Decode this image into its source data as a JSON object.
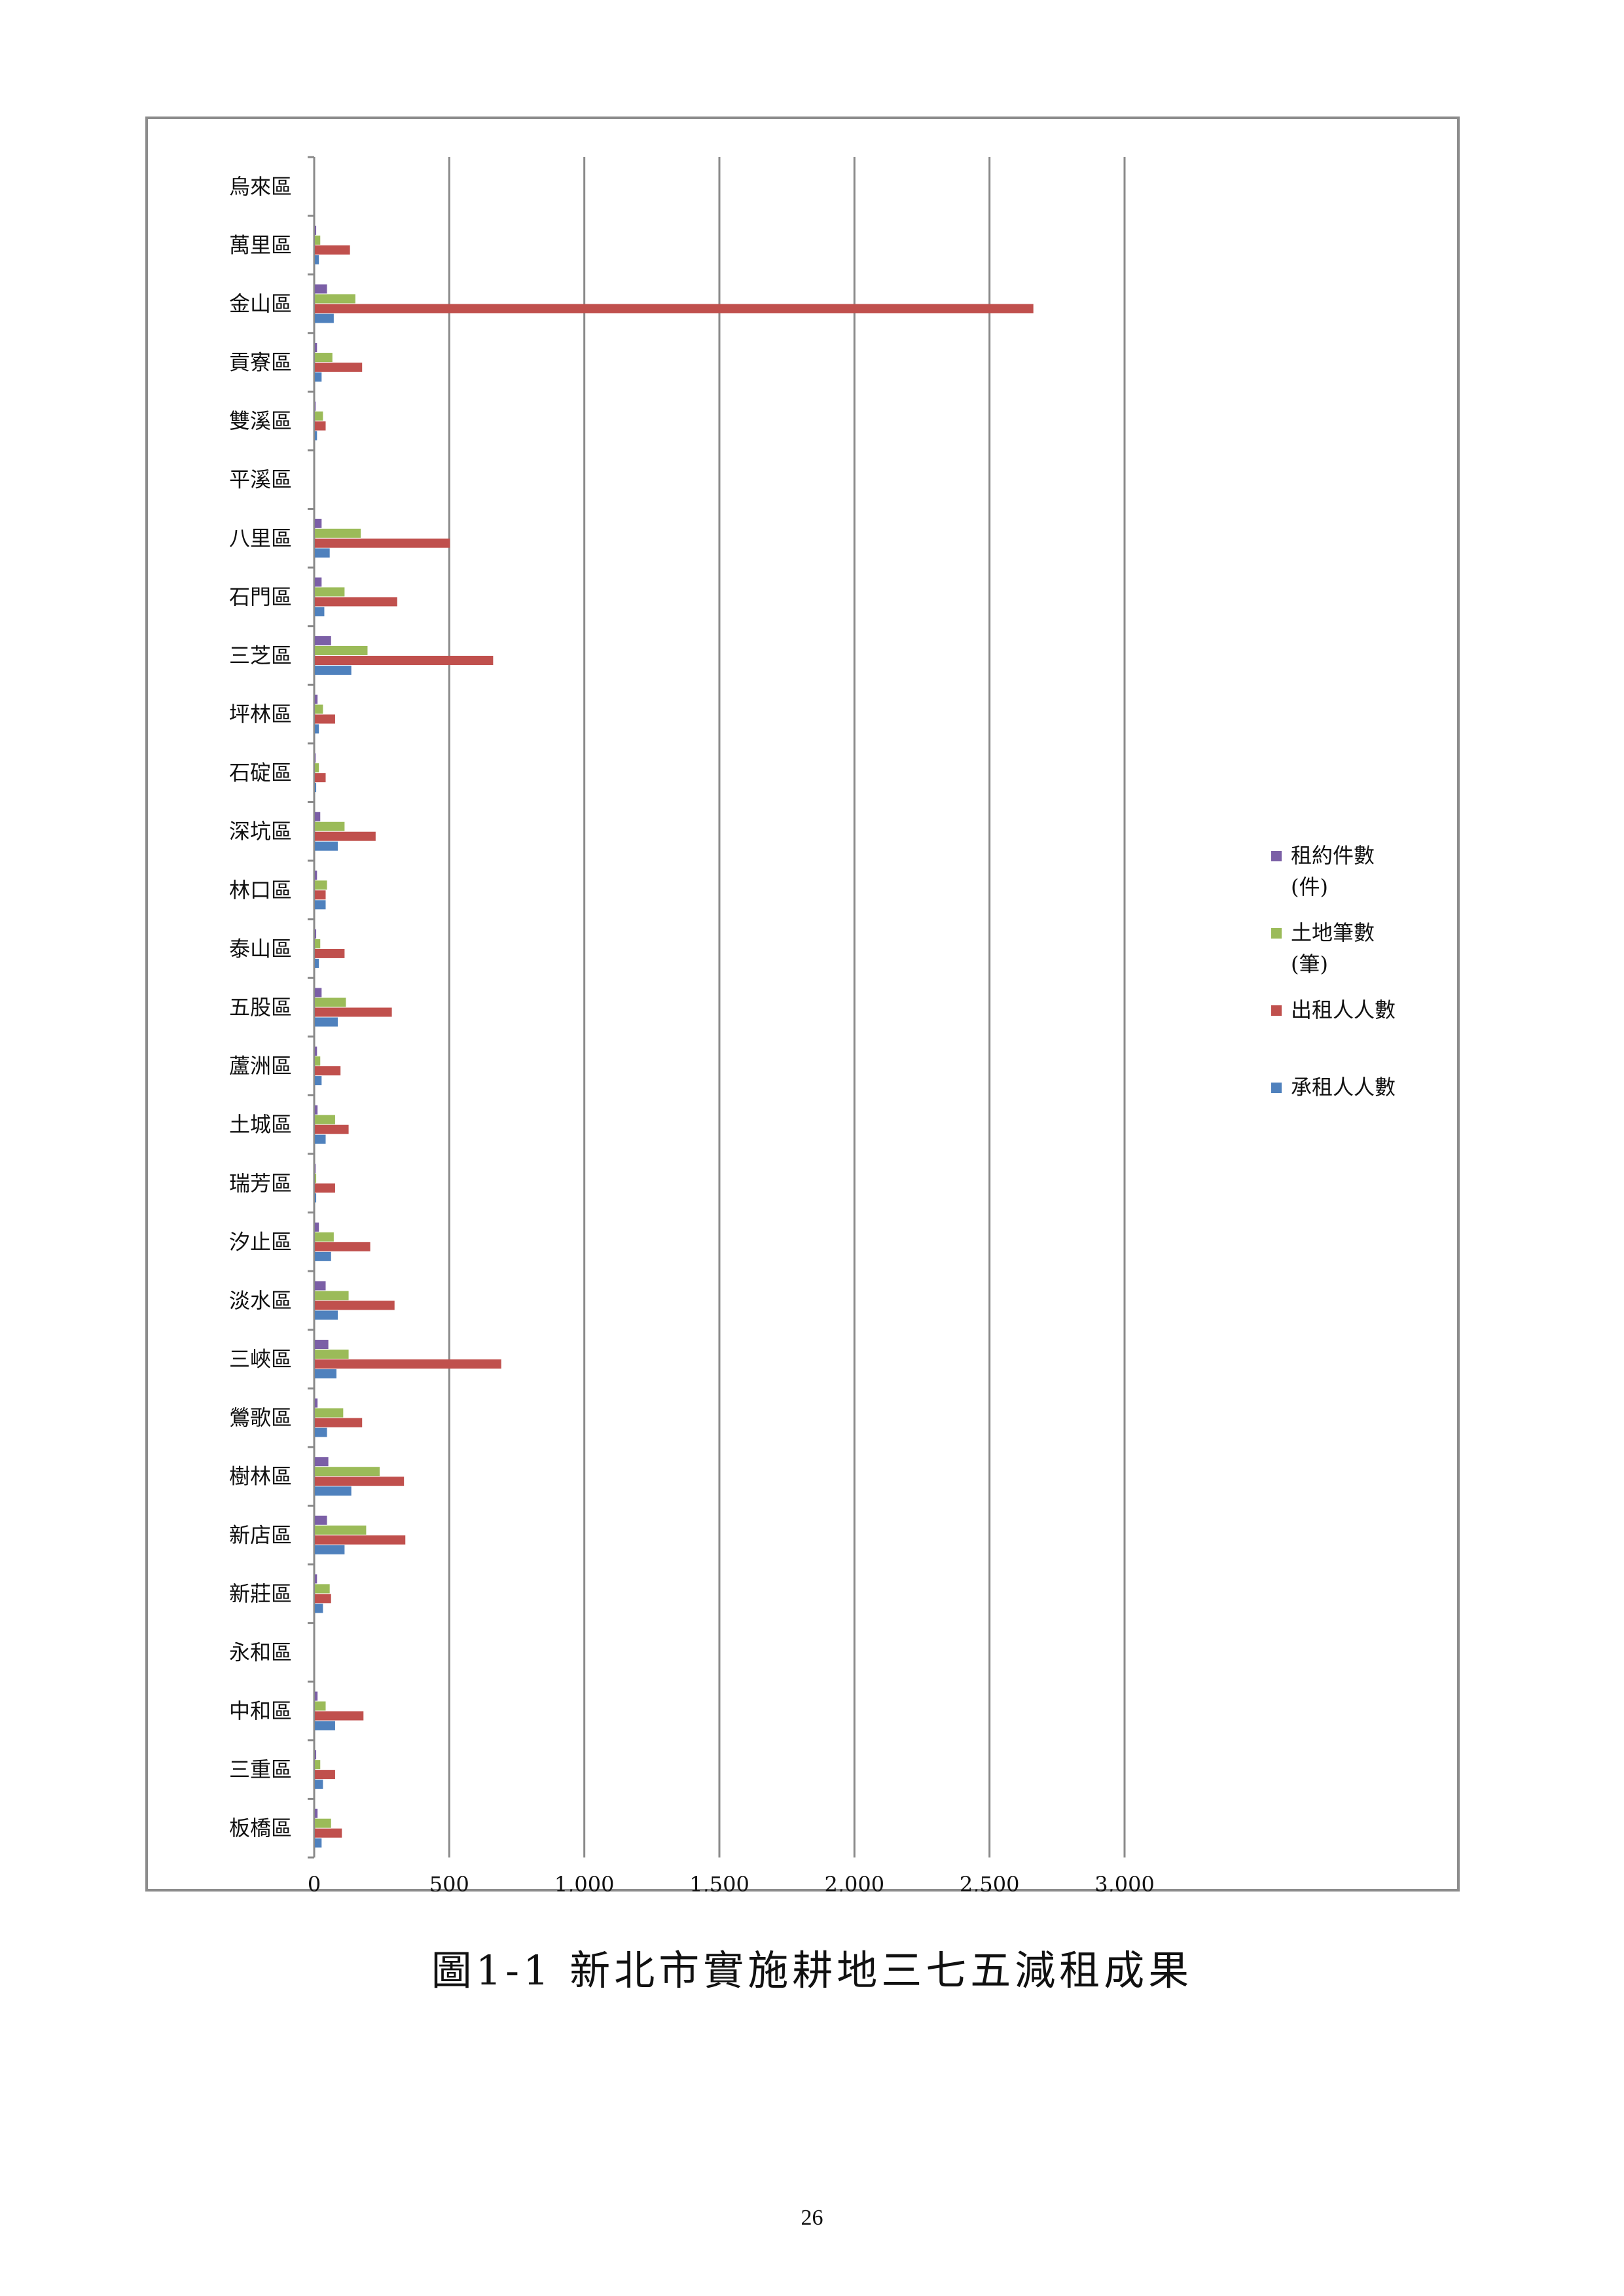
{
  "chart_data": {
    "type": "bar",
    "orientation": "horizontal",
    "categories": [
      "烏來區",
      "萬里區",
      "金山區",
      "貢寮區",
      "雙溪區",
      "平溪區",
      "八里區",
      "石門區",
      "三芝區",
      "坪林區",
      "石碇區",
      "深坑區",
      "林口區",
      "泰山區",
      "五股區",
      "蘆洲區",
      "土城區",
      "瑞芳區",
      "汐止區",
      "淡水區",
      "三峽區",
      "鶯歌區",
      "樹林區",
      "新店區",
      "新莊區",
      "永和區",
      "中和區",
      "三重區",
      "板橋區"
    ],
    "series": [
      {
        "name": "租約件數(件)",
        "color": "#7b5fa6",
        "values": [
          0,
          5,
          45,
          8,
          3,
          0,
          25,
          25,
          60,
          10,
          3,
          20,
          8,
          5,
          25,
          8,
          10,
          3,
          15,
          40,
          50,
          10,
          50,
          45,
          8,
          0,
          10,
          5,
          10
        ]
      },
      {
        "name": "土地筆數(筆)",
        "color": "#9bbb59",
        "values": [
          0,
          20,
          150,
          65,
          30,
          0,
          170,
          110,
          195,
          30,
          15,
          110,
          45,
          20,
          115,
          20,
          75,
          5,
          70,
          125,
          125,
          105,
          240,
          190,
          55,
          0,
          40,
          20,
          60
        ]
      },
      {
        "name": "出租人人數",
        "color": "#c0504d",
        "values": [
          0,
          130,
          2660,
          175,
          40,
          0,
          500,
          305,
          660,
          75,
          40,
          225,
          40,
          110,
          285,
          95,
          125,
          75,
          205,
          295,
          690,
          175,
          330,
          335,
          60,
          0,
          180,
          75,
          100
        ]
      },
      {
        "name": "承租人人數",
        "color": "#4f81bd",
        "values": [
          0,
          15,
          70,
          25,
          8,
          0,
          55,
          35,
          135,
          15,
          5,
          85,
          40,
          15,
          85,
          25,
          40,
          5,
          60,
          85,
          80,
          45,
          135,
          110,
          30,
          0,
          75,
          30,
          25
        ]
      }
    ],
    "x_ticks": [
      "0",
      "500",
      "1,000",
      "1,500",
      "2,000",
      "2,500",
      "3,000"
    ],
    "xlim": [
      0,
      3000
    ],
    "grid": "vertical major gridlines",
    "legend_position": "right"
  },
  "legend": {
    "items": [
      {
        "lines": [
          "租約件數",
          "(件)"
        ],
        "color": "#7b5fa6"
      },
      {
        "lines": [
          "土地筆數",
          "(筆)"
        ],
        "color": "#9bbb59"
      },
      {
        "lines": [
          "出租人人數"
        ],
        "color": "#c0504d"
      },
      {
        "lines": [
          "承租人人數"
        ],
        "color": "#4f81bd"
      }
    ]
  },
  "caption": "圖1-1  新北市實施耕地三七五減租成果",
  "page_number": "26"
}
